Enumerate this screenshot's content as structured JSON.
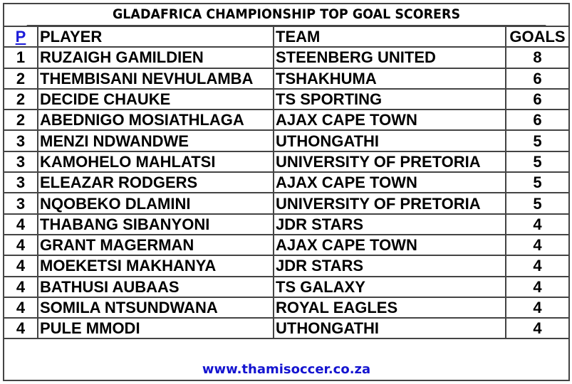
{
  "title": "GLADAFRICA CHAMPIONSHIP TOP GOAL SCORERS",
  "headers": {
    "position": "P",
    "player": "PLAYER",
    "team": "TEAM",
    "goals": "GOALS"
  },
  "rows": [
    {
      "pos": "1",
      "player": "RUZAIGH GAMILDIEN",
      "team": "STEENBERG UNITED",
      "goals": "8"
    },
    {
      "pos": "2",
      "player": "THEMBISANI NEVHULAMBA",
      "team": "TSHAKHUMA",
      "goals": "6"
    },
    {
      "pos": "2",
      "player": "DECIDE CHAUKE",
      "team": "TS SPORTING",
      "goals": "6"
    },
    {
      "pos": "2",
      "player": "ABEDNIGO MOSIATHLAGA",
      "team": "AJAX CAPE TOWN",
      "goals": "6"
    },
    {
      "pos": "3",
      "player": "MENZI NDWANDWE",
      "team": "UTHONGATHI",
      "goals": "5"
    },
    {
      "pos": "3",
      "player": "KAMOHELO MAHLATSI",
      "team": "UNIVERSITY OF PRETORIA",
      "goals": "5"
    },
    {
      "pos": "3",
      "player": "ELEAZAR RODGERS",
      "team": "AJAX CAPE TOWN",
      "goals": "5"
    },
    {
      "pos": "3",
      "player": "NQOBEKO DLAMINI",
      "team": "UNIVERSITY OF PRETORIA",
      "goals": "5"
    },
    {
      "pos": "4",
      "player": "THABANG SIBANYONI",
      "team": "JDR STARS",
      "goals": "4"
    },
    {
      "pos": "4",
      "player": "GRANT MAGERMAN",
      "team": "AJAX CAPE TOWN",
      "goals": "4"
    },
    {
      "pos": "4",
      "player": "MOEKETSI MAKHANYA",
      "team": "JDR STARS",
      "goals": "4"
    },
    {
      "pos": "4",
      "player": "BATHUSI AUBAAS",
      "team": "TS GALAXY",
      "goals": "4"
    },
    {
      "pos": "4",
      "player": "SOMILA NTSUNDWANA",
      "team": "ROYAL EAGLES",
      "goals": "4"
    },
    {
      "pos": "4",
      "player": "PULE MMODI",
      "team": "UTHONGATHI",
      "goals": "4"
    }
  ],
  "footer": "www.thamisoccer.co.za",
  "colors": {
    "link": "#1414d0",
    "border": "#444444"
  }
}
